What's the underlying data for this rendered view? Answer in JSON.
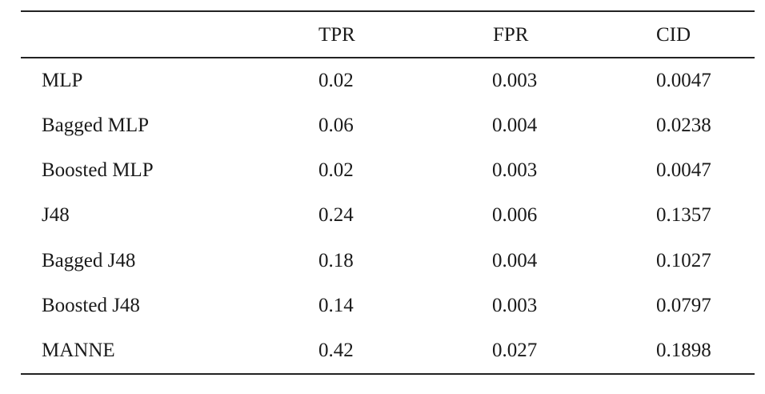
{
  "table": {
    "headers": [
      "",
      "TPR",
      "FPR",
      "CID"
    ],
    "rows": [
      {
        "method": "MLP",
        "tpr": "0.02",
        "fpr": "0.003",
        "cid": "0.0047"
      },
      {
        "method": "Bagged MLP",
        "tpr": "0.06",
        "fpr": "0.004",
        "cid": "0.0238"
      },
      {
        "method": "Boosted MLP",
        "tpr": "0.02",
        "fpr": "0.003",
        "cid": "0.0047"
      },
      {
        "method": "J48",
        "tpr": "0.24",
        "fpr": "0.006",
        "cid": "0.1357"
      },
      {
        "method": "Bagged J48",
        "tpr": "0.18",
        "fpr": "0.004",
        "cid": "0.1027"
      },
      {
        "method": "Boosted J48",
        "tpr": "0.14",
        "fpr": "0.003",
        "cid": "0.0797"
      },
      {
        "method": "MANNE",
        "tpr": "0.42",
        "fpr": "0.027",
        "cid": "0.1898"
      }
    ]
  }
}
